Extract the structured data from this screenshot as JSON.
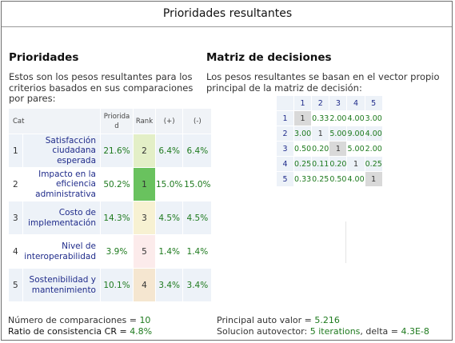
{
  "title": "Prioridades resultantes",
  "left": {
    "heading": "Prioridades",
    "description": "Estos son los pesos resultantes para los criterios basados en sus comparaciones por pares:",
    "columns": {
      "cat": "Cat",
      "priority": "Priorida d",
      "rank": "Rank",
      "plus": "(+)",
      "minus": "(-)"
    },
    "rows": [
      {
        "idx": "1",
        "criterion": "Satisfacción ciudadana esperada",
        "priority": "21.6%",
        "rank": "2",
        "plus": "6.4%",
        "minus": "6.4%",
        "rank_color": "#e3efc7"
      },
      {
        "idx": "2",
        "criterion": "Impacto en la eficiencia administrativa",
        "priority": "50.2%",
        "rank": "1",
        "plus": "15.0%",
        "minus": "15.0%",
        "rank_color": "#69c25e"
      },
      {
        "idx": "3",
        "criterion": "Costo de implementación",
        "priority": "14.3%",
        "rank": "3",
        "plus": "4.5%",
        "minus": "4.5%",
        "rank_color": "#f7f1d2"
      },
      {
        "idx": "4",
        "criterion": "Nivel de interoperabilidad",
        "priority": "3.9%",
        "rank": "5",
        "plus": "1.4%",
        "minus": "1.4%",
        "rank_color": "#fcebeb"
      },
      {
        "idx": "5",
        "criterion": "Sostenibilidad y mantenimiento",
        "priority": "10.1%",
        "rank": "4",
        "plus": "3.4%",
        "minus": "3.4%",
        "rank_color": "#f5e6d0"
      }
    ]
  },
  "right": {
    "heading": "Matriz de decisiones",
    "description": "Los pesos resultantes se basan en el vector propio principal de la matriz de decisión:",
    "col_headers": [
      "1",
      "2",
      "3",
      "4",
      "5"
    ],
    "matrix": [
      {
        "row": "1",
        "values": [
          "1",
          "0.33",
          "2.00",
          "4.00",
          "3.00"
        ]
      },
      {
        "row": "2",
        "values": [
          "3.00",
          "1",
          "5.00",
          "9.00",
          "4.00"
        ]
      },
      {
        "row": "3",
        "values": [
          "0.50",
          "0.20",
          "1",
          "5.00",
          "2.00"
        ]
      },
      {
        "row": "4",
        "values": [
          "0.25",
          "0.11",
          "0.20",
          "1",
          "0.25"
        ]
      },
      {
        "row": "5",
        "values": [
          "0.33",
          "0.25",
          "0.50",
          "4.00",
          "1"
        ]
      }
    ]
  },
  "stats": {
    "comparisons_label": "Número de comparaciones = ",
    "comparisons_value": "10",
    "cr_label": "Ratio de consistencia CR = ",
    "cr_value": "4.8%",
    "eigen_label": "Principal auto valor = ",
    "eigen_value": "5.216",
    "solution_label": "Solucion autovector: ",
    "solution_iter": "5 iterations",
    "solution_mid": ", delta = ",
    "solution_delta": "4.3E-8"
  }
}
